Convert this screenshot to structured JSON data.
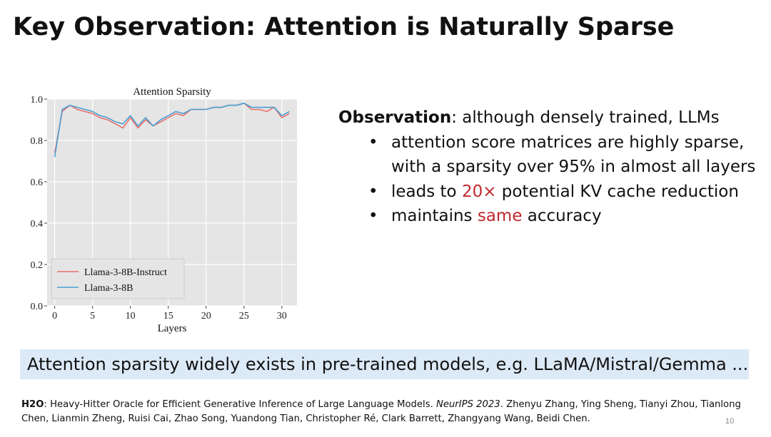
{
  "slide": {
    "title": "Key Observation: Attention is Naturally Sparse",
    "page_number": "10"
  },
  "observation": {
    "heading": "Observation",
    "heading_rest": ": although densely trained, LLMs",
    "bullet": "•",
    "bullets": [
      {
        "line1": "attention score matrices are highly sparse,",
        "line2": "with a sparsity over 95% in almost all layers"
      },
      {
        "pre": "leads to ",
        "highlight": "20×",
        "post": " potential KV cache reduction"
      },
      {
        "pre": "maintains ",
        "highlight": "same",
        "post": " accuracy"
      }
    ]
  },
  "banner": {
    "text": "Attention sparsity widely exists in pre-trained models, e.g. LLaMA/Mistral/Gemma ..."
  },
  "citation": {
    "bold": "H2O",
    "text1": ": Heavy-Hitter Oracle for Efficient Generative Inference of Large Language Models. ",
    "venue": "NeurIPS 2023",
    "text2": ". Zhenyu Zhang, Ying Sheng, Tianyi Zhou, Tianlong Chen, Lianmin Zheng, Ruisi Cai, Zhao Song, Yuandong Tian, Christopher Ré, Clark Barrett, Zhangyang Wang, Beidi Chen."
  },
  "colors": {
    "highlight": "#c0282d",
    "banner_bg": "#dce9f6",
    "series_instruct": "#e8716a",
    "series_base": "#4a9fd4",
    "plot_bg": "#e5e5e5"
  },
  "chart_data": {
    "type": "line",
    "title": "Attention Sparsity",
    "xlabel": "Layers",
    "ylabel": "",
    "xlim": [
      -1,
      32
    ],
    "ylim": [
      0.0,
      1.0
    ],
    "xticks": [
      0,
      5,
      10,
      15,
      20,
      25,
      30
    ],
    "yticks": [
      0.0,
      0.2,
      0.4,
      0.6,
      0.8,
      1.0
    ],
    "ytick_labels": [
      "0.0",
      "0.2",
      "0.4",
      "0.6",
      "0.8",
      "1.0"
    ],
    "grid": true,
    "legend_position": "lower-left",
    "x": [
      0,
      1,
      2,
      3,
      4,
      5,
      6,
      7,
      8,
      9,
      10,
      11,
      12,
      13,
      14,
      15,
      16,
      17,
      18,
      19,
      20,
      21,
      22,
      23,
      24,
      25,
      26,
      27,
      28,
      29,
      30,
      31
    ],
    "series": [
      {
        "name": "Llama-3-8B-Instruct",
        "color": "#e8716a",
        "values": [
          0.74,
          0.94,
          0.97,
          0.95,
          0.94,
          0.93,
          0.91,
          0.9,
          0.88,
          0.86,
          0.91,
          0.86,
          0.9,
          0.87,
          0.89,
          0.91,
          0.93,
          0.92,
          0.95,
          0.95,
          0.95,
          0.96,
          0.96,
          0.97,
          0.97,
          0.98,
          0.95,
          0.95,
          0.94,
          0.96,
          0.91,
          0.93
        ]
      },
      {
        "name": "Llama-3-8B",
        "color": "#4a9fd4",
        "values": [
          0.72,
          0.95,
          0.97,
          0.96,
          0.95,
          0.94,
          0.92,
          0.91,
          0.89,
          0.88,
          0.92,
          0.87,
          0.91,
          0.87,
          0.9,
          0.92,
          0.94,
          0.93,
          0.95,
          0.95,
          0.95,
          0.96,
          0.96,
          0.97,
          0.97,
          0.98,
          0.96,
          0.96,
          0.96,
          0.96,
          0.92,
          0.94
        ]
      }
    ]
  }
}
